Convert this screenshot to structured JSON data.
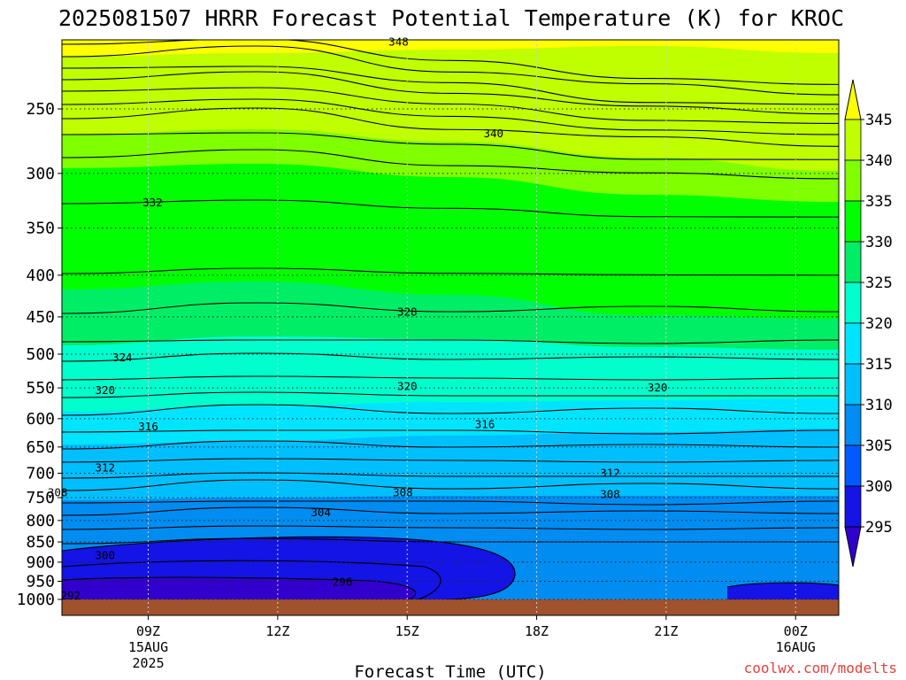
{
  "chart_data": {
    "type": "heatmap",
    "title": "2025081507 HRRR Forecast Potential Temperature (K) for KROC",
    "xlabel": "Forecast Time (UTC)",
    "ylabel": "",
    "credit": "coolwx.com/modelts",
    "y_ticks": [
      250,
      300,
      350,
      400,
      450,
      500,
      550,
      600,
      650,
      700,
      750,
      800,
      850,
      900,
      950,
      1000
    ],
    "x_ticks": [
      {
        "label": "09Z",
        "sub1": "15AUG",
        "sub2": "2025",
        "hour": 9
      },
      {
        "label": "12Z",
        "sub1": "",
        "sub2": "",
        "hour": 12
      },
      {
        "label": "15Z",
        "sub1": "",
        "sub2": "",
        "hour": 15
      },
      {
        "label": "18Z",
        "sub1": "",
        "sub2": "",
        "hour": 18
      },
      {
        "label": "21Z",
        "sub1": "",
        "sub2": "",
        "hour": 21
      },
      {
        "label": "00Z",
        "sub1": "16AUG",
        "sub2": "",
        "hour": 24
      }
    ],
    "x_range_hours": [
      7,
      25
    ],
    "y_range_hpa": [
      200,
      1000
    ],
    "colorbar": {
      "ticks": [
        345,
        340,
        335,
        330,
        325,
        320,
        315,
        310,
        305,
        300,
        295
      ],
      "colors": [
        "#ffff00",
        "#c0ff00",
        "#80ff00",
        "#00ff00",
        "#00ee66",
        "#00ffcc",
        "#00e5ff",
        "#00bfff",
        "#008cf0",
        "#005aff",
        "#1414e6",
        "#3200cc"
      ]
    },
    "ground_color": "#a0522d",
    "contour_labels": [
      {
        "text": "348",
        "hour": 14.8,
        "p": 207
      },
      {
        "text": "340",
        "hour": 17.0,
        "p": 268
      },
      {
        "text": "332",
        "hour": 9.1,
        "p": 326
      },
      {
        "text": "328",
        "hour": 15.0,
        "p": 444
      },
      {
        "text": "324",
        "hour": 8.4,
        "p": 505
      },
      {
        "text": "320",
        "hour": 8.0,
        "p": 554
      },
      {
        "text": "320",
        "hour": 15.0,
        "p": 548
      },
      {
        "text": "320",
        "hour": 20.8,
        "p": 550
      },
      {
        "text": "316",
        "hour": 9.0,
        "p": 614
      },
      {
        "text": "316",
        "hour": 16.8,
        "p": 610
      },
      {
        "text": "312",
        "hour": 8.0,
        "p": 690
      },
      {
        "text": "312",
        "hour": 19.7,
        "p": 700
      },
      {
        "text": "308",
        "hour": 6.9,
        "p": 740
      },
      {
        "text": "308",
        "hour": 14.9,
        "p": 740
      },
      {
        "text": "308",
        "hour": 19.7,
        "p": 743
      },
      {
        "text": "304",
        "hour": 13.0,
        "p": 783
      },
      {
        "text": "300",
        "hour": 8.0,
        "p": 883
      },
      {
        "text": "296",
        "hour": 13.5,
        "p": 952
      },
      {
        "text": "292",
        "hour": 7.2,
        "p": 990
      }
    ]
  }
}
